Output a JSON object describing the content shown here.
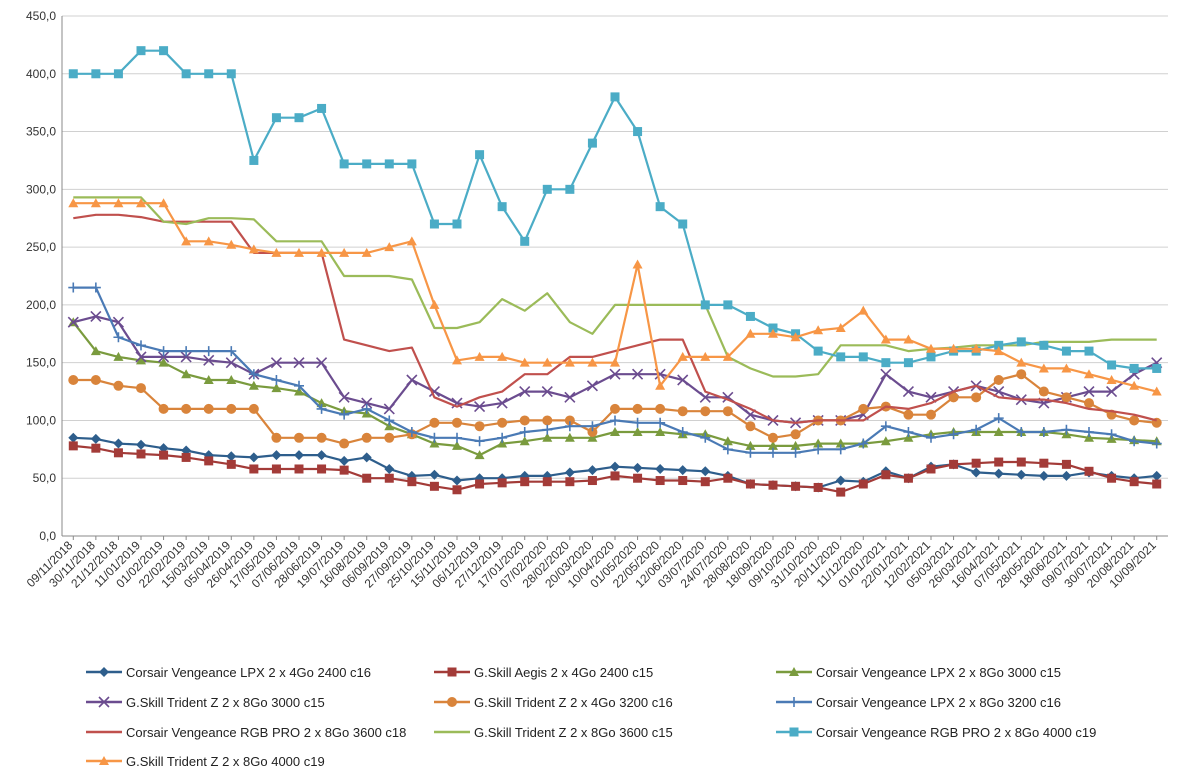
{
  "chart_data": {
    "type": "line",
    "title": "",
    "xlabel": "",
    "ylabel": "",
    "ylim": [
      0,
      450
    ],
    "yticks": [
      "0,0",
      "50,0",
      "100,0",
      "150,0",
      "200,0",
      "250,0",
      "300,0",
      "350,0",
      "400,0",
      "450,0"
    ],
    "grid": "horizontal",
    "legend_position": "bottom",
    "x": [
      "09/11/2018",
      "30/11/2018",
      "21/12/2018",
      "11/01/2019",
      "01/02/2019",
      "22/02/2019",
      "15/03/2019",
      "05/04/2019",
      "26/04/2019",
      "17/05/2019",
      "07/06/2019",
      "28/06/2019",
      "19/07/2019",
      "16/08/2019",
      "06/09/2019",
      "27/09/2019",
      "25/10/2019",
      "15/11/2019",
      "06/12/2019",
      "27/12/2019",
      "17/01/2020",
      "07/02/2020",
      "28/02/2020",
      "20/03/2020",
      "10/04/2020",
      "01/05/2020",
      "22/05/2020",
      "12/06/2020",
      "03/07/2020",
      "24/07/2020",
      "28/08/2020",
      "18/09/2020",
      "09/10/2020",
      "31/10/2020",
      "20/11/2020",
      "11/12/2020",
      "01/01/2021",
      "22/01/2021",
      "12/02/2021",
      "05/03/2021",
      "26/03/2021",
      "16/04/2021",
      "07/05/2021",
      "28/05/2021",
      "18/06/2021",
      "09/07/2021",
      "30/07/2021",
      "20/08/2021",
      "10/09/2021"
    ],
    "series": [
      {
        "name": "Corsair Vengeance LPX 2 x 4Go 2400 c16",
        "color": "#2e5e8c",
        "marker": "diamond",
        "values": [
          85,
          84,
          80,
          79,
          76,
          74,
          70,
          69,
          68,
          70,
          70,
          70,
          65,
          68,
          58,
          52,
          53,
          48,
          50,
          50,
          52,
          52,
          55,
          57,
          60,
          59,
          58,
          57,
          56,
          52,
          45,
          44,
          43,
          42,
          48,
          47,
          56,
          50,
          60,
          62,
          55,
          54,
          53,
          52,
          52,
          55,
          52,
          50,
          52
        ]
      },
      {
        "name": "G.Skill Aegis 2 x 4Go 2400 c15",
        "color": "#a33b38",
        "marker": "square",
        "values": [
          78,
          76,
          72,
          71,
          70,
          68,
          65,
          62,
          58,
          58,
          58,
          58,
          57,
          50,
          50,
          47,
          43,
          40,
          45,
          46,
          47,
          47,
          47,
          48,
          52,
          50,
          48,
          48,
          47,
          50,
          45,
          44,
          43,
          42,
          38,
          45,
          53,
          50,
          58,
          62,
          63,
          64,
          64,
          63,
          62,
          56,
          50,
          47,
          45
        ]
      },
      {
        "name": "Corsair Vengeance LPX 2 x 8Go 3000 c15",
        "color": "#7a9b3e",
        "marker": "triangle",
        "values": [
          185,
          160,
          155,
          152,
          150,
          140,
          135,
          135,
          130,
          128,
          125,
          115,
          108,
          106,
          95,
          88,
          80,
          78,
          70,
          80,
          82,
          85,
          85,
          85,
          90,
          90,
          90,
          88,
          88,
          82,
          78,
          78,
          78,
          80,
          80,
          80,
          82,
          85,
          88,
          90,
          90,
          90,
          90,
          90,
          88,
          85,
          84,
          83,
          82
        ]
      },
      {
        "name": "G.Skill Trident Z 2 x 8Go 3000 c15",
        "color": "#6b4c8f",
        "marker": "x",
        "values": [
          185,
          190,
          185,
          155,
          155,
          155,
          152,
          150,
          140,
          150,
          150,
          150,
          120,
          115,
          110,
          135,
          125,
          115,
          112,
          115,
          125,
          125,
          120,
          130,
          140,
          140,
          140,
          135,
          120,
          120,
          105,
          100,
          98,
          100,
          100,
          105,
          140,
          125,
          120,
          125,
          130,
          125,
          118,
          115,
          120,
          125,
          125,
          140,
          150
        ]
      },
      {
        "name": "G.Skill Trident Z 2 x 4Go 3200 c16",
        "color": "#d9843b",
        "marker": "circle",
        "values": [
          135,
          135,
          130,
          128,
          110,
          110,
          110,
          110,
          110,
          85,
          85,
          85,
          80,
          85,
          85,
          88,
          98,
          98,
          95,
          98,
          100,
          100,
          100,
          90,
          110,
          110,
          110,
          108,
          108,
          108,
          95,
          85,
          88,
          100,
          100,
          110,
          112,
          105,
          105,
          120,
          120,
          135,
          140,
          125,
          120,
          115,
          105,
          100,
          98
        ]
      },
      {
        "name": "Corsair Vengeance LPX 2 x 8Go 3200 c16",
        "color": "#4a7ab5",
        "marker": "plus",
        "values": [
          215,
          215,
          172,
          165,
          160,
          160,
          160,
          160,
          140,
          135,
          130,
          110,
          105,
          110,
          100,
          90,
          85,
          85,
          82,
          85,
          90,
          92,
          95,
          95,
          100,
          98,
          98,
          90,
          85,
          75,
          72,
          72,
          72,
          75,
          75,
          80,
          95,
          90,
          85,
          88,
          92,
          102,
          90,
          90,
          92,
          90,
          88,
          82,
          80
        ]
      },
      {
        "name": "Corsair Vengeance RGB PRO 2 x 8Go 3600 c18",
        "color": "#c0504d",
        "marker": "none",
        "values": [
          275,
          278,
          278,
          276,
          272,
          272,
          272,
          272,
          245,
          245,
          245,
          245,
          170,
          165,
          160,
          163,
          120,
          112,
          120,
          125,
          140,
          140,
          155,
          155,
          160,
          165,
          170,
          170,
          125,
          118,
          110,
          100,
          98,
          100,
          100,
          100,
          112,
          110,
          115,
          125,
          130,
          120,
          118,
          118,
          115,
          110,
          108,
          105,
          100
        ]
      },
      {
        "name": "G.Skill Trident Z 2 x 8Go 3600 c15",
        "color": "#9bbb59",
        "marker": "none",
        "values": [
          293,
          293,
          293,
          293,
          272,
          270,
          275,
          275,
          274,
          255,
          255,
          255,
          225,
          225,
          225,
          222,
          180,
          180,
          185,
          205,
          195,
          210,
          185,
          175,
          200,
          200,
          200,
          200,
          200,
          155,
          145,
          138,
          138,
          140,
          165,
          165,
          165,
          160,
          162,
          163,
          165,
          165,
          165,
          168,
          168,
          168,
          170,
          170,
          170
        ]
      },
      {
        "name": "Corsair Vengeance RGB PRO 2 x 8Go 4000 c19",
        "color": "#4bacc6",
        "marker": "square",
        "values": [
          400,
          400,
          400,
          420,
          420,
          400,
          400,
          400,
          325,
          362,
          362,
          370,
          322,
          322,
          322,
          322,
          270,
          270,
          330,
          285,
          255,
          300,
          300,
          340,
          380,
          350,
          285,
          270,
          200,
          200,
          190,
          180,
          175,
          160,
          155,
          155,
          150,
          150,
          155,
          160,
          160,
          165,
          168,
          165,
          160,
          160,
          148,
          145,
          145
        ]
      },
      {
        "name": "G.Skill Trident Z 2 x 8Go 4000 c19",
        "color": "#f79646",
        "marker": "triangle",
        "values": [
          288,
          288,
          288,
          288,
          288,
          255,
          255,
          252,
          248,
          245,
          245,
          245,
          245,
          245,
          250,
          255,
          200,
          152,
          155,
          155,
          150,
          150,
          150,
          150,
          150,
          235,
          130,
          155,
          155,
          155,
          175,
          175,
          172,
          178,
          180,
          195,
          170,
          170,
          162,
          162,
          162,
          160,
          150,
          145,
          145,
          140,
          135,
          130,
          125
        ]
      }
    ]
  }
}
